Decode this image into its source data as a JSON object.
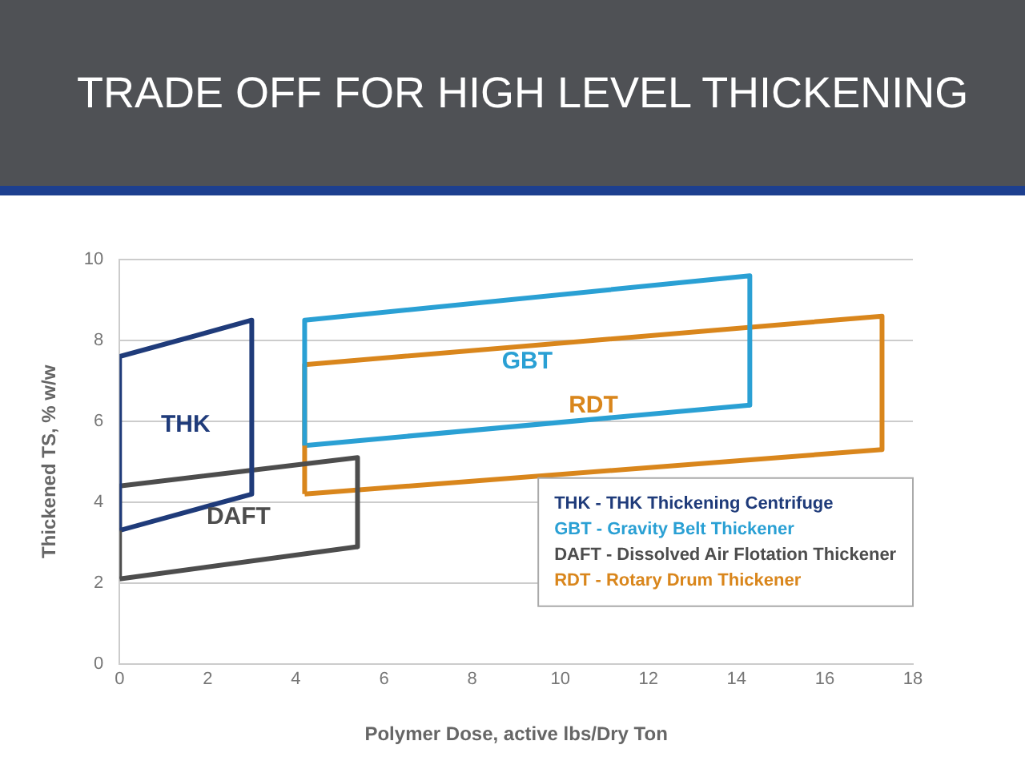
{
  "chart_data": {
    "type": "line",
    "title": "TRADE OFF FOR HIGH LEVEL THICKENING",
    "xlabel": "Polymer Dose, active lbs/Dry Ton",
    "ylabel": "Thickened TS, % w/w",
    "xlim": [
      0,
      18
    ],
    "xticks": [
      0,
      2,
      4,
      6,
      8,
      10,
      12,
      14,
      16,
      18
    ],
    "ylim": [
      0,
      10
    ],
    "yticks": [
      0,
      2,
      4,
      6,
      8,
      10
    ],
    "grid": "y",
    "legend": false,
    "marker": "none",
    "line_style": "solid",
    "series": [
      {
        "name": "THK",
        "color": "#1f3b7a",
        "x": [
          0,
          0,
          3,
          3
        ],
        "values": [
          3.3,
          7.6,
          8.5,
          4.2
        ]
      },
      {
        "name": "GBT",
        "color": "#2aa0d4",
        "x": [
          4.2,
          4.2,
          14.3,
          14.3
        ],
        "values": [
          5.4,
          8.5,
          9.6,
          6.4
        ]
      },
      {
        "name": "DAFT",
        "color": "#4d4d4d",
        "x": [
          0,
          0,
          5.4,
          5.4
        ],
        "values": [
          2.1,
          4.4,
          5.1,
          2.9
        ]
      },
      {
        "name": "RDT",
        "color": "#d9861c",
        "x": [
          4.2,
          4.2,
          17.3,
          17.3
        ],
        "values": [
          4.2,
          7.4,
          8.6,
          5.3
        ]
      },
      {
        "color": "#1f3b7a",
        "x": [
          0,
          3
        ],
        "values": [
          3.3,
          4.2
        ]
      },
      {
        "color": "#2aa0d4",
        "x": [
          4.2,
          14.3
        ],
        "values": [
          5.4,
          6.4
        ]
      },
      {
        "color": "#4d4d4d",
        "x": [
          0,
          5.4
        ],
        "values": [
          2.1,
          2.9
        ]
      },
      {
        "color": "#d9861c",
        "x": [
          4.2,
          17.3
        ],
        "values": [
          4.2,
          5.3
        ]
      }
    ],
    "annotations": [
      "THK - THK Thickening Centrifuge",
      "GBT - Gravity Belt Thickener",
      "DAFT - Dissolved Air Flotation Thickener",
      "RDT - Rotary Drum Thickener"
    ]
  }
}
